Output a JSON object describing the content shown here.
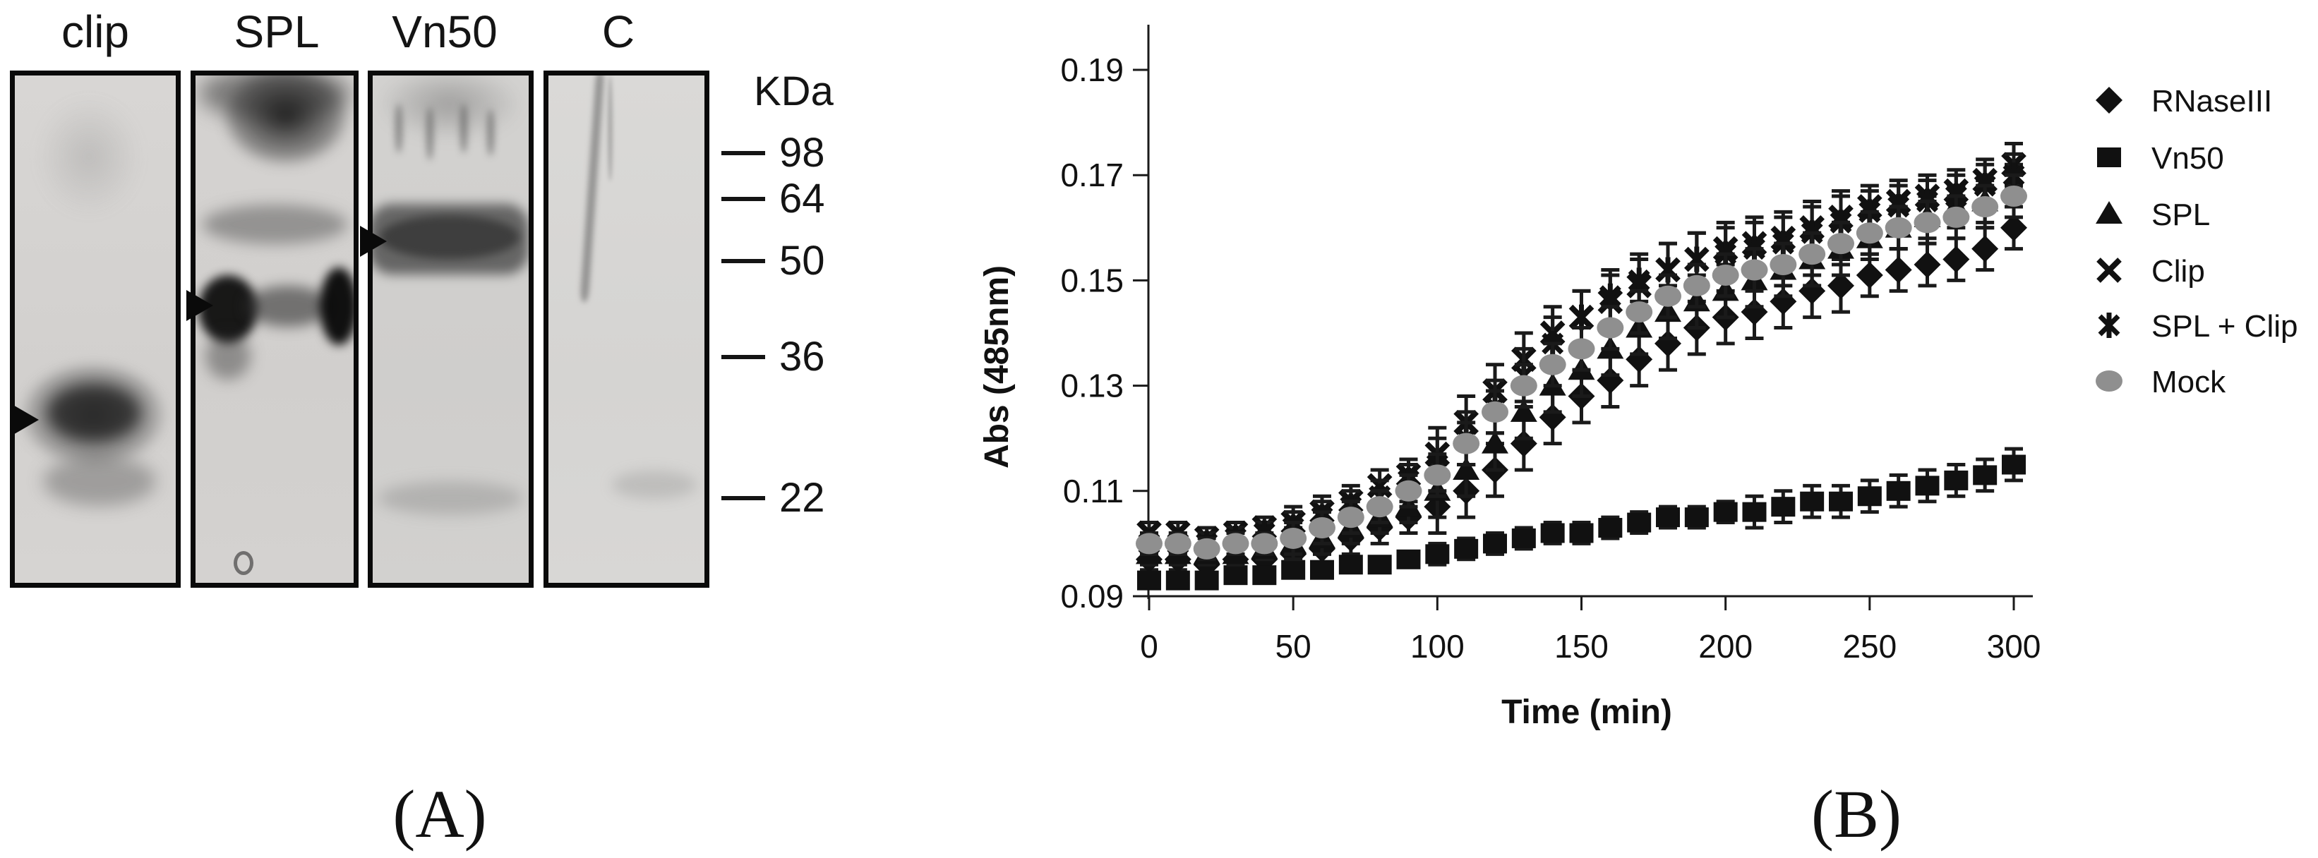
{
  "figure": {
    "panel_a_caption": "(A)",
    "panel_b_caption": "(B)"
  },
  "gel": {
    "lanes": [
      {
        "label": "clip"
      },
      {
        "label": "SPL"
      },
      {
        "label": "Vn50"
      },
      {
        "label": "C"
      }
    ],
    "ladder": {
      "unit_label": "KDa",
      "markers": [
        {
          "label": "98"
        },
        {
          "label": "64"
        },
        {
          "label": "50"
        },
        {
          "label": "36"
        },
        {
          "label": "22"
        }
      ]
    }
  },
  "chart_data": {
    "type": "scatter",
    "title": "",
    "xlabel": "Time (min)",
    "ylabel": "Abs (485nm)",
    "xlim": [
      0,
      300
    ],
    "ylim": [
      0.09,
      0.198
    ],
    "grid": false,
    "legend_position": "right",
    "marker_black": "#111111",
    "mock_gray": "#8f8f8f",
    "xticks": [
      {
        "v": 0,
        "label": "0"
      },
      {
        "v": 50,
        "label": "50"
      },
      {
        "v": 100,
        "label": "100"
      },
      {
        "v": 150,
        "label": "150"
      },
      {
        "v": 200,
        "label": "200"
      },
      {
        "v": 250,
        "label": "250"
      },
      {
        "v": 300,
        "label": "300"
      }
    ],
    "yticks": [
      {
        "v": 0.09,
        "label": "0.09"
      },
      {
        "v": 0.11,
        "label": "0.11"
      },
      {
        "v": 0.13,
        "label": "0.13"
      },
      {
        "v": 0.15,
        "label": "0.15"
      },
      {
        "v": 0.17,
        "label": "0.17"
      },
      {
        "v": 0.19,
        "label": "0.19"
      }
    ],
    "x": [
      0,
      10,
      20,
      30,
      40,
      50,
      60,
      70,
      80,
      90,
      100,
      110,
      120,
      130,
      140,
      150,
      160,
      170,
      180,
      190,
      200,
      210,
      220,
      230,
      240,
      250,
      260,
      270,
      280,
      290,
      300
    ],
    "series": [
      {
        "name": "RNaseIII",
        "marker": "diamond",
        "color": "#111111",
        "values": [
          0.097,
          0.097,
          0.096,
          0.097,
          0.097,
          0.098,
          0.099,
          0.101,
          0.103,
          0.105,
          0.107,
          0.11,
          0.114,
          0.119,
          0.124,
          0.128,
          0.131,
          0.135,
          0.138,
          0.141,
          0.143,
          0.144,
          0.146,
          0.148,
          0.149,
          0.151,
          0.152,
          0.153,
          0.154,
          0.156,
          0.16
        ],
        "err": [
          0.002,
          0.002,
          0.002,
          0.002,
          0.002,
          0.003,
          0.003,
          0.003,
          0.003,
          0.003,
          0.005,
          0.005,
          0.005,
          0.005,
          0.005,
          0.005,
          0.005,
          0.005,
          0.005,
          0.005,
          0.005,
          0.005,
          0.005,
          0.005,
          0.005,
          0.004,
          0.004,
          0.004,
          0.004,
          0.004,
          0.004
        ]
      },
      {
        "name": "Vn50",
        "marker": "square",
        "color": "#111111",
        "values": [
          0.093,
          0.093,
          0.093,
          0.094,
          0.094,
          0.095,
          0.095,
          0.096,
          0.096,
          0.097,
          0.098,
          0.099,
          0.1,
          0.101,
          0.102,
          0.102,
          0.103,
          0.104,
          0.105,
          0.105,
          0.106,
          0.106,
          0.107,
          0.108,
          0.108,
          0.109,
          0.11,
          0.111,
          0.112,
          0.113,
          0.115
        ],
        "err": [
          0.001,
          0.001,
          0.001,
          0.001,
          0.001,
          0.001,
          0.001,
          0.001,
          0.001,
          0.001,
          0.002,
          0.002,
          0.002,
          0.002,
          0.002,
          0.002,
          0.002,
          0.002,
          0.002,
          0.002,
          0.002,
          0.003,
          0.003,
          0.003,
          0.003,
          0.003,
          0.003,
          0.003,
          0.003,
          0.003,
          0.003
        ]
      },
      {
        "name": "SPL",
        "marker": "triangle",
        "color": "#111111",
        "values": [
          0.098,
          0.098,
          0.098,
          0.098,
          0.099,
          0.1,
          0.101,
          0.103,
          0.105,
          0.107,
          0.11,
          0.114,
          0.119,
          0.125,
          0.13,
          0.133,
          0.137,
          0.141,
          0.144,
          0.146,
          0.148,
          0.15,
          0.152,
          0.154,
          0.156,
          0.158,
          0.16,
          0.162,
          0.164,
          0.165,
          0.168
        ],
        "err": [
          0.002,
          0.002,
          0.002,
          0.002,
          0.002,
          0.003,
          0.003,
          0.003,
          0.003,
          0.003,
          0.005,
          0.005,
          0.005,
          0.005,
          0.005,
          0.005,
          0.005,
          0.005,
          0.005,
          0.005,
          0.005,
          0.005,
          0.005,
          0.005,
          0.005,
          0.004,
          0.004,
          0.004,
          0.004,
          0.004,
          0.004
        ]
      },
      {
        "name": "Clip",
        "marker": "x",
        "color": "#111111",
        "values": [
          0.102,
          0.102,
          0.101,
          0.102,
          0.103,
          0.104,
          0.106,
          0.108,
          0.111,
          0.113,
          0.117,
          0.123,
          0.129,
          0.135,
          0.14,
          0.143,
          0.146,
          0.149,
          0.152,
          0.154,
          0.156,
          0.157,
          0.158,
          0.16,
          0.162,
          0.164,
          0.165,
          0.166,
          0.167,
          0.169,
          0.172
        ],
        "err": [
          0.002,
          0.002,
          0.002,
          0.002,
          0.002,
          0.003,
          0.003,
          0.003,
          0.003,
          0.003,
          0.005,
          0.005,
          0.005,
          0.005,
          0.005,
          0.005,
          0.005,
          0.005,
          0.005,
          0.005,
          0.005,
          0.005,
          0.005,
          0.005,
          0.005,
          0.004,
          0.004,
          0.004,
          0.004,
          0.004,
          0.004
        ]
      },
      {
        "name": "SPL + Clip",
        "marker": "star",
        "color": "#111111",
        "values": [
          0.1,
          0.1,
          0.1,
          0.101,
          0.102,
          0.103,
          0.105,
          0.107,
          0.109,
          0.112,
          0.115,
          0.12,
          0.126,
          0.132,
          0.138,
          0.143,
          0.147,
          0.15,
          0.152,
          0.154,
          0.155,
          0.156,
          0.157,
          0.159,
          0.161,
          0.163,
          0.164,
          0.165,
          0.166,
          0.168,
          0.17
        ],
        "err": [
          0.002,
          0.002,
          0.002,
          0.002,
          0.002,
          0.003,
          0.003,
          0.003,
          0.003,
          0.003,
          0.005,
          0.005,
          0.005,
          0.005,
          0.005,
          0.005,
          0.005,
          0.005,
          0.005,
          0.005,
          0.005,
          0.005,
          0.005,
          0.005,
          0.005,
          0.004,
          0.004,
          0.004,
          0.004,
          0.004,
          0.004
        ]
      },
      {
        "name": "Mock",
        "marker": "circle",
        "color": "#8f8f8f",
        "values": [
          0.1,
          0.1,
          0.099,
          0.1,
          0.1,
          0.101,
          0.103,
          0.105,
          0.107,
          0.11,
          0.113,
          0.119,
          0.125,
          0.13,
          0.134,
          0.137,
          0.141,
          0.144,
          0.147,
          0.149,
          0.151,
          0.152,
          0.153,
          0.155,
          0.157,
          0.159,
          0.16,
          0.161,
          0.162,
          0.164,
          0.166
        ],
        "err": [
          0.002,
          0.002,
          0.002,
          0.002,
          0.002,
          0.003,
          0.003,
          0.003,
          0.003,
          0.003,
          0.004,
          0.004,
          0.004,
          0.004,
          0.004,
          0.004,
          0.004,
          0.004,
          0.004,
          0.004,
          0.004,
          0.004,
          0.004,
          0.004,
          0.004,
          0.004,
          0.004,
          0.004,
          0.004,
          0.004,
          0.004
        ]
      }
    ]
  }
}
